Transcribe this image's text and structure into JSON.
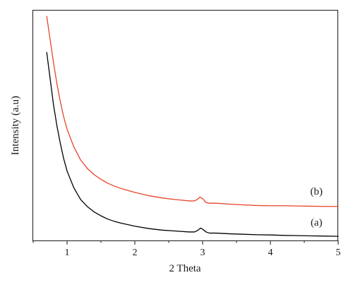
{
  "chart_data": {
    "type": "line",
    "xlabel": "2 Theta",
    "ylabel": "Intensity (a.u)",
    "xlim": [
      0.5,
      5
    ],
    "ylim": [
      0,
      1
    ],
    "x_ticks": [
      1,
      2,
      3,
      4,
      5
    ],
    "y_ticks_labeled": false,
    "grid": false,
    "legend": "none",
    "series": [
      {
        "name": "(a)",
        "color": "#000000",
        "points": [
          [
            0.7,
            0.818
          ],
          [
            0.75,
            0.704
          ],
          [
            0.8,
            0.59
          ],
          [
            0.85,
            0.499
          ],
          [
            0.9,
            0.423
          ],
          [
            0.95,
            0.356
          ],
          [
            1.0,
            0.302
          ],
          [
            1.1,
            0.229
          ],
          [
            1.2,
            0.178
          ],
          [
            1.3,
            0.147
          ],
          [
            1.4,
            0.124
          ],
          [
            1.5,
            0.107
          ],
          [
            1.6,
            0.093
          ],
          [
            1.7,
            0.083
          ],
          [
            1.8,
            0.075
          ],
          [
            2.0,
            0.062
          ],
          [
            2.2,
            0.052
          ],
          [
            2.4,
            0.045
          ],
          [
            2.6,
            0.041
          ],
          [
            2.8,
            0.037
          ],
          [
            2.88,
            0.037
          ],
          [
            2.93,
            0.044
          ],
          [
            2.97,
            0.054
          ],
          [
            3.0,
            0.049
          ],
          [
            3.05,
            0.037
          ],
          [
            3.1,
            0.032
          ],
          [
            3.2,
            0.032
          ],
          [
            3.4,
            0.029
          ],
          [
            3.6,
            0.027
          ],
          [
            3.8,
            0.025
          ],
          [
            4.0,
            0.024
          ],
          [
            4.2,
            0.022
          ],
          [
            4.4,
            0.021
          ],
          [
            4.6,
            0.02
          ],
          [
            4.8,
            0.019
          ],
          [
            5.0,
            0.018
          ]
        ]
      },
      {
        "name": "(b)",
        "color": "#e8442a",
        "points": [
          [
            0.7,
            0.975
          ],
          [
            0.75,
            0.874
          ],
          [
            0.8,
            0.773
          ],
          [
            0.85,
            0.682
          ],
          [
            0.9,
            0.605
          ],
          [
            0.95,
            0.538
          ],
          [
            1.0,
            0.484
          ],
          [
            1.1,
            0.407
          ],
          [
            1.2,
            0.35
          ],
          [
            1.3,
            0.313
          ],
          [
            1.4,
            0.286
          ],
          [
            1.5,
            0.266
          ],
          [
            1.6,
            0.249
          ],
          [
            1.7,
            0.236
          ],
          [
            1.8,
            0.226
          ],
          [
            2.0,
            0.209
          ],
          [
            2.2,
            0.195
          ],
          [
            2.4,
            0.185
          ],
          [
            2.6,
            0.178
          ],
          [
            2.8,
            0.172
          ],
          [
            2.88,
            0.172
          ],
          [
            2.92,
            0.178
          ],
          [
            2.96,
            0.189
          ],
          [
            3.0,
            0.182
          ],
          [
            3.05,
            0.165
          ],
          [
            3.1,
            0.162
          ],
          [
            3.2,
            0.162
          ],
          [
            3.4,
            0.158
          ],
          [
            3.6,
            0.155
          ],
          [
            3.8,
            0.152
          ],
          [
            4.0,
            0.151
          ],
          [
            4.2,
            0.151
          ],
          [
            4.4,
            0.15
          ],
          [
            4.6,
            0.149
          ],
          [
            4.8,
            0.148
          ],
          [
            5.0,
            0.148
          ]
        ]
      }
    ],
    "annotations": [
      {
        "text": "(b)",
        "series": "(b)",
        "x": 4.68,
        "y": 0.2
      },
      {
        "text": "(a)",
        "series": "(a)",
        "x": 4.68,
        "y": 0.065
      }
    ]
  }
}
